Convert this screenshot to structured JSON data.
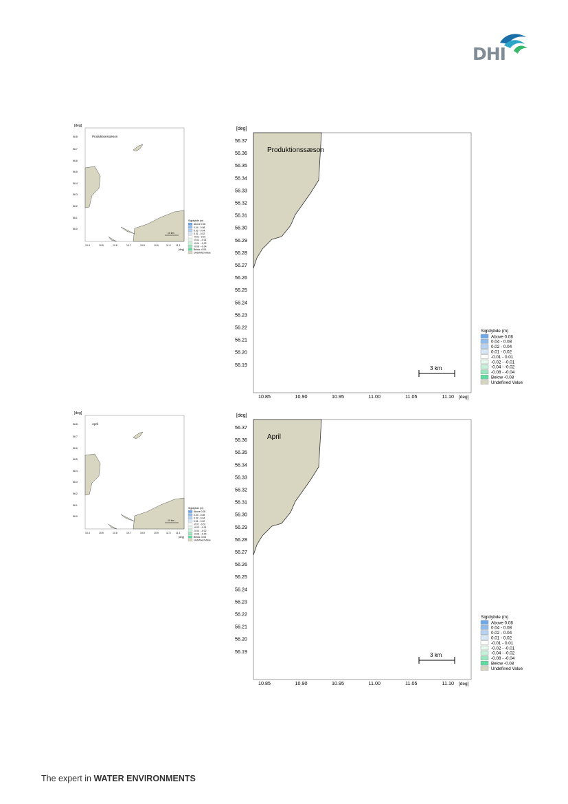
{
  "brand": {
    "logo_text": "DHI",
    "tagline_prefix": "The expert in",
    "tagline_strong": "WATER ENVIRONMENTS"
  },
  "unit_label": "[deg]",
  "big_map": {
    "y_ticks": [
      "56.37",
      "56.36",
      "56.35",
      "56.34",
      "56.33",
      "56.32",
      "56.31",
      "56.30",
      "56.29",
      "56.28",
      "56.27",
      "56.26",
      "56.25",
      "56.24",
      "56.23",
      "56.22",
      "56.21",
      "56.20",
      "56.19"
    ],
    "x_ticks": [
      "10.85",
      "10.90",
      "10.95",
      "11.00",
      "11.05",
      "11.10"
    ],
    "scale_bar": "3 km"
  },
  "small_map": {
    "y_ticks": [
      "56.8",
      "56.7",
      "56.6",
      "56.5",
      "56.4",
      "56.3",
      "56.2",
      "56.1",
      "56.0"
    ],
    "x_ticks": [
      "10.4",
      "10.5",
      "10.6",
      "10.7",
      "10.8",
      "10.9",
      "11.0",
      "11.1"
    ],
    "scale_bar": "10 km"
  },
  "legend": {
    "title": "Sigtdybde (m)",
    "items": [
      {
        "label": "Above  0.08",
        "color": "#6fa8e8"
      },
      {
        "label": " 0.04 -  0.08",
        "color": "#8fbcee"
      },
      {
        "label": " 0.02 -  0.04",
        "color": "#b3d2f4"
      },
      {
        "label": " 0.01 -  0.02",
        "color": "#d6e7f9"
      },
      {
        "label": "-0.01 -  0.01",
        "color": "#ffffff"
      },
      {
        "label": "-0.02 - -0.01",
        "color": "#e6f9ef"
      },
      {
        "label": "-0.04 - -0.02",
        "color": "#c6f1d9"
      },
      {
        "label": "-0.08 - -0.04",
        "color": "#9be8c0"
      },
      {
        "label": "Below -0.08",
        "color": "#5fdb9f"
      },
      {
        "label": "Undefined Value",
        "color": "#d8d6c0"
      }
    ]
  },
  "land_color": "#d8d6c0",
  "figures": [
    {
      "title": "Produktionssæson"
    },
    {
      "title": "April"
    }
  ]
}
